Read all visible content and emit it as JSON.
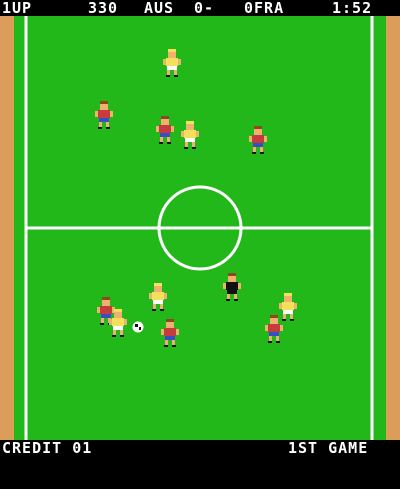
{
  "hud": {
    "player_label": "1UP",
    "score": "330",
    "team_home": "AUS",
    "home_goals": "0-",
    "team_away": "0FRA",
    "clock": "1:52",
    "credit": "CREDIT 01",
    "game_status": "1ST GAME"
  },
  "colors": {
    "pitch": "#22b81a",
    "track": "#dc9c5a",
    "lines": "#ffffff",
    "home_shirt": "#c43c3c",
    "home_shorts": "#3a4cc8",
    "away_shirt": "#f4e05a",
    "away_shorts": "#ffffff",
    "keeper_shirt": "#111111",
    "skin": "#f0b070"
  },
  "players": [
    {
      "team": "away"
    },
    {
      "team": "home"
    },
    {
      "team": "home"
    },
    {
      "team": "away"
    },
    {
      "team": "home"
    },
    {
      "team": "away"
    },
    {
      "team": "keeper"
    },
    {
      "team": "away"
    },
    {
      "team": "home"
    },
    {
      "team": "away"
    },
    {
      "team": "home"
    },
    {
      "team": "home"
    }
  ]
}
